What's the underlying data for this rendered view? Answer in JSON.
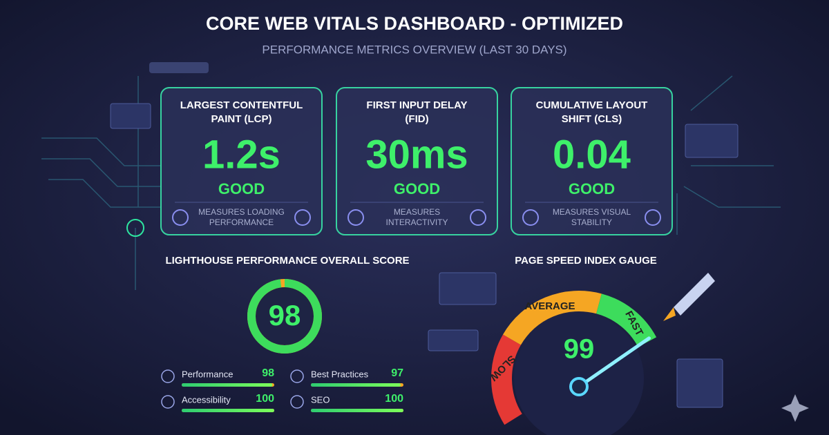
{
  "header": {
    "title": "CORE WEB VITALS DASHBOARD - OPTIMIZED",
    "subtitle": "PERFORMANCE METRICS OVERVIEW (LAST 30 DAYS)"
  },
  "cards": [
    {
      "title": [
        "LARGEST CONTENTFUL",
        "PAINT (LCP)"
      ],
      "value": "1.2s",
      "status": "GOOD",
      "description": [
        "MEASURES LOADING",
        "PERFORMANCE"
      ]
    },
    {
      "title": [
        "FIRST INPUT DELAY",
        "(FID)"
      ],
      "value": "30ms",
      "status": "GOOD",
      "description": [
        "MEASURES",
        "INTERACTIVITY"
      ]
    },
    {
      "title": [
        "CUMULATIVE LAYOUT",
        "SHIFT (CLS)"
      ],
      "value": "0.04",
      "status": "GOOD",
      "description": [
        "MEASURES VISUAL",
        "STABILITY"
      ]
    }
  ],
  "lighthouse": {
    "title": "LIGHTHOUSE PERFORMANCE OVERALL SCORE",
    "score": 98,
    "breakdown": [
      {
        "label": "Performance",
        "value": 98
      },
      {
        "label": "Best Practices",
        "value": 97
      },
      {
        "label": "Accessibility",
        "value": 100
      },
      {
        "label": "SEO",
        "value": 100
      }
    ]
  },
  "gauge": {
    "title": "PAGE SPEED INDEX GAUGE",
    "value": 99,
    "zones": [
      "SLOW",
      "AVERAGE",
      "FAST"
    ]
  }
}
